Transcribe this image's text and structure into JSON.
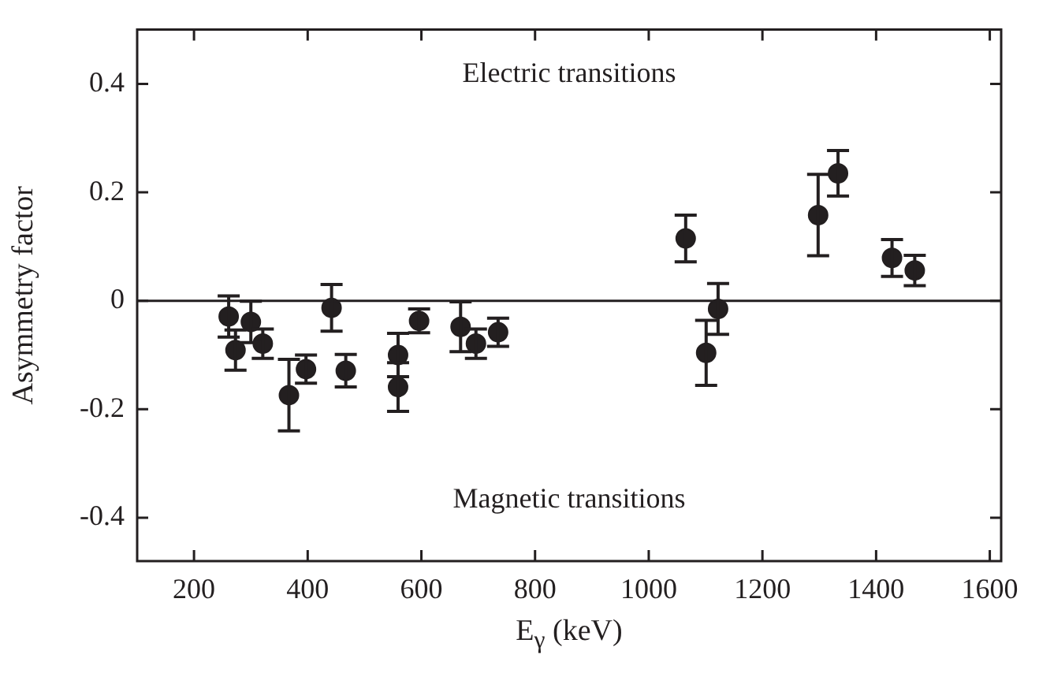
{
  "chart_data": {
    "type": "scatter",
    "xlabel": "E$_{γ}$ (keV)",
    "ylabel": "Asymmetry factor",
    "annotations": [
      "Electric transitions",
      "Magnetic transitions"
    ],
    "x": [
      261,
      273,
      300,
      321,
      367,
      397,
      442,
      467,
      559,
      559,
      596,
      669,
      696,
      735,
      1065,
      1101,
      1122,
      1298,
      1333,
      1428,
      1468
    ],
    "series": [
      {
        "color": "#231f20",
        "values": [
          -0.029,
          -0.091,
          -0.039,
          -0.079,
          -0.174,
          -0.126,
          -0.013,
          -0.129,
          -0.1,
          -0.159,
          -0.037,
          -0.048,
          -0.079,
          -0.058,
          0.115,
          -0.096,
          -0.015,
          0.158,
          0.235,
          0.079,
          0.056
        ],
        "errors": [
          0.038,
          0.037,
          0.038,
          0.027,
          0.066,
          0.026,
          0.043,
          0.03,
          0.04,
          0.045,
          0.022,
          0.046,
          0.027,
          0.026,
          0.043,
          0.06,
          0.047,
          0.075,
          0.042,
          0.034,
          0.028
        ]
      }
    ],
    "xlim": [
      100,
      1620
    ],
    "xticks": [
      200,
      400,
      600,
      800,
      1000,
      1200,
      1400,
      1600
    ],
    "ylim": [
      -0.48,
      0.5
    ],
    "yticks": [
      -0.4,
      -0.2,
      0,
      0.2,
      0.4
    ],
    "ref_lines": [
      {
        "axis": "y",
        "value": 0,
        "color": "#231f20"
      }
    ],
    "marker": "circle",
    "grid": false,
    "legend": false
  }
}
